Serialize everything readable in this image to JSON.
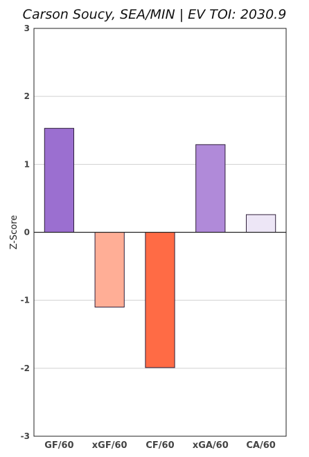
{
  "chart_data": {
    "type": "bar",
    "title": "Carson Soucy, SEA/MIN  |  EV TOI: 2030.9",
    "xlabel": "",
    "ylabel": "Z-Score",
    "ylim": [
      -3,
      3
    ],
    "yticks": [
      -3,
      -2,
      -1,
      0,
      1,
      2,
      3
    ],
    "grid": true,
    "categories": [
      "GF/60",
      "xGF/60",
      "CF/60",
      "xGA/60",
      "CA/60"
    ],
    "values": [
      1.53,
      -1.1,
      -1.99,
      1.29,
      0.26
    ],
    "colors": [
      "#9b6fd0",
      "#ffae96",
      "#ff6b45",
      "#b08ad9",
      "#ede6f6"
    ]
  }
}
